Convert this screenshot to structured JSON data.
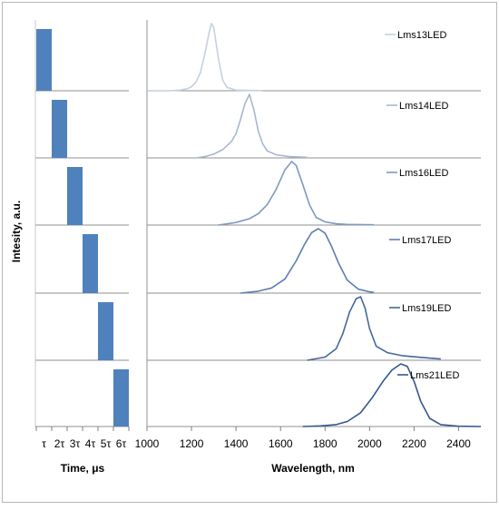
{
  "chart_data": [
    {
      "type": "bar",
      "ylabel": "Intesity, a.u.",
      "xlabel": "Time, μs",
      "categories": [
        "τ",
        "2τ",
        "3τ",
        "4τ",
        "5τ",
        "6τ"
      ],
      "panels": [
        {
          "start": 0,
          "end": 1
        },
        {
          "start": 1,
          "end": 2
        },
        {
          "start": 2,
          "end": 3
        },
        {
          "start": 3,
          "end": 4
        },
        {
          "start": 4,
          "end": 5
        },
        {
          "start": 5,
          "end": 6
        }
      ],
      "bar_color": "#4f81bd"
    },
    {
      "type": "line",
      "xlabel": "Wavelength, nm",
      "xlim": [
        1000,
        2500
      ],
      "xticks": [
        1000,
        1200,
        1400,
        1600,
        1800,
        2000,
        2200,
        2400
      ],
      "series": [
        {
          "name": "Lms13LED",
          "color": "#c5d0e0",
          "x": [
            1000,
            1050,
            1100,
            1150,
            1180,
            1200,
            1220,
            1240,
            1260,
            1280,
            1290,
            1300,
            1320,
            1340,
            1360,
            1400,
            1450,
            1500,
            1520
          ],
          "y": [
            0,
            0,
            0,
            0.01,
            0.03,
            0.06,
            0.13,
            0.27,
            0.55,
            0.88,
            1,
            0.94,
            0.5,
            0.16,
            0.05,
            0.01,
            0.005,
            0.003,
            0.002
          ]
        },
        {
          "name": "Lms14LED",
          "color": "#a7b7d0",
          "x": [
            1220,
            1260,
            1300,
            1340,
            1380,
            1400,
            1420,
            1440,
            1460,
            1480,
            1500,
            1520,
            1540,
            1580,
            1640,
            1720
          ],
          "y": [
            0,
            0.02,
            0.06,
            0.13,
            0.26,
            0.38,
            0.6,
            0.85,
            1,
            0.76,
            0.42,
            0.22,
            0.11,
            0.05,
            0.02,
            0.01
          ]
        },
        {
          "name": "Lms16LED",
          "color": "#7f99bf",
          "x": [
            1320,
            1400,
            1460,
            1500,
            1540,
            1580,
            1620,
            1650,
            1670,
            1700,
            1730,
            1760,
            1800,
            1850,
            1900,
            2020
          ],
          "y": [
            0,
            0.04,
            0.1,
            0.18,
            0.32,
            0.56,
            0.87,
            1,
            0.94,
            0.64,
            0.32,
            0.12,
            0.05,
            0.02,
            0.01,
            0.005
          ]
        },
        {
          "name": "Lms17LED",
          "color": "#5d7eaf",
          "x": [
            1420,
            1500,
            1560,
            1620,
            1670,
            1710,
            1740,
            1770,
            1800,
            1830,
            1860,
            1900,
            1950,
            2000,
            2020
          ],
          "y": [
            0,
            0.03,
            0.08,
            0.22,
            0.5,
            0.77,
            0.94,
            1,
            0.93,
            0.72,
            0.47,
            0.2,
            0.06,
            0.02,
            0.01
          ]
        },
        {
          "name": "Lms19LED",
          "color": "#45679d",
          "x": [
            1720,
            1800,
            1850,
            1880,
            1910,
            1940,
            1960,
            1980,
            2000,
            2030,
            2080,
            2150,
            2250,
            2320
          ],
          "y": [
            0,
            0.05,
            0.18,
            0.42,
            0.76,
            0.97,
            1,
            0.82,
            0.5,
            0.22,
            0.12,
            0.07,
            0.04,
            0.02
          ]
        },
        {
          "name": "Lms21LED",
          "color": "#37578d",
          "x": [
            1700,
            1780,
            1850,
            1900,
            1960,
            2010,
            2060,
            2100,
            2140,
            2170,
            2200,
            2230,
            2270,
            2320,
            2400,
            2500
          ],
          "y": [
            0,
            0.01,
            0.03,
            0.08,
            0.22,
            0.45,
            0.72,
            0.9,
            1,
            0.96,
            0.72,
            0.4,
            0.13,
            0.03,
            0.005,
            0
          ]
        }
      ]
    }
  ]
}
